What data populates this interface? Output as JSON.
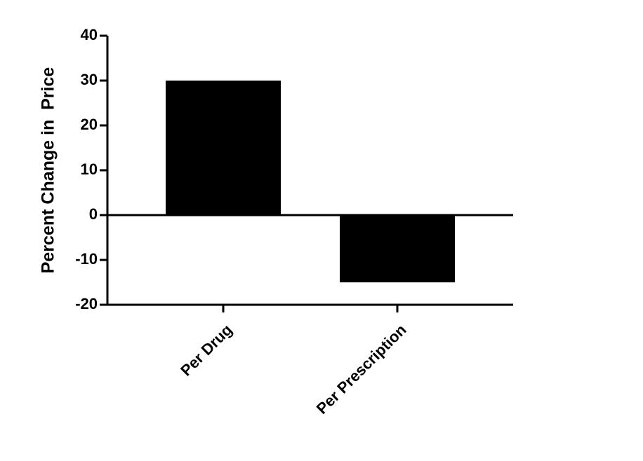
{
  "chart_data": {
    "type": "bar",
    "y_label": "Percent Change in  Price",
    "categories": [
      "Per Drug",
      "Per Prescription"
    ],
    "values": [
      30,
      -15
    ],
    "color": "#000000",
    "ylim": [
      -20,
      40
    ],
    "yticks": [
      -20,
      -10,
      0,
      10,
      20,
      30,
      40
    ],
    "grid": false
  }
}
